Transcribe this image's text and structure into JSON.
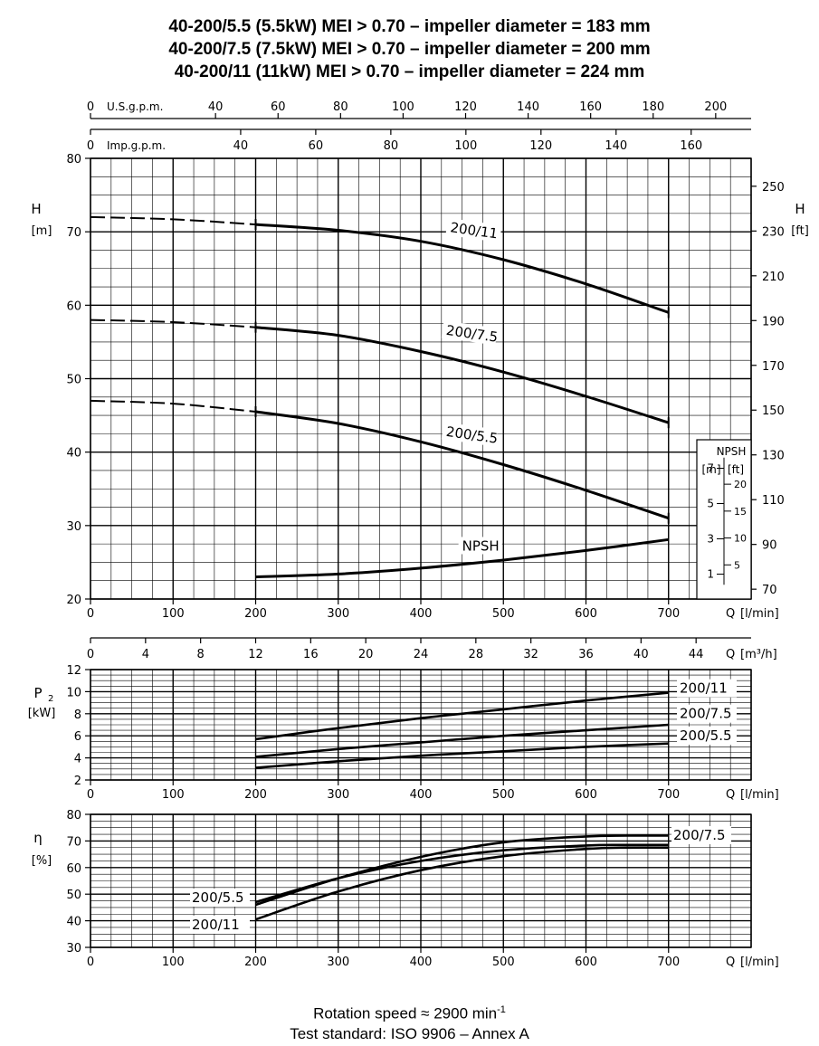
{
  "header": {
    "line1": "40-200/5.5 (5.5kW) MEI > 0.70 – impeller diameter = 183 mm",
    "line2": "40-200/7.5 (7.5kW) MEI > 0.70 – impeller diameter = 200 mm",
    "line3": "40-200/11  (11kW)  MEI > 0.70 – impeller diameter = 224 mm"
  },
  "footer": {
    "rotation_prefix": "Rotation speed ≈ 2900 min",
    "rotation_exp": "-1",
    "standard": "Test standard: ISO 9906 – Annex A"
  },
  "chart_data": [
    {
      "type": "line",
      "name_hint": "head",
      "ylabel": "H",
      "yunit": "[m]",
      "ylabel_right": "H",
      "yunit_right": "[ft]",
      "xlabel": "Q",
      "xunit": "[l/min]",
      "xlim": [
        0,
        800
      ],
      "ylim": [
        20,
        80
      ],
      "xticks": [
        0,
        100,
        200,
        300,
        400,
        500,
        600,
        700
      ],
      "yticks": [
        20,
        30,
        40,
        50,
        60,
        70,
        80
      ],
      "ft_ticks": [
        70,
        90,
        110,
        130,
        150,
        170,
        190,
        210,
        230,
        250
      ],
      "usgpm_label": "U.S.g.p.m.",
      "usgpm_ticks": [
        0,
        40,
        60,
        80,
        100,
        120,
        140,
        160,
        180,
        200
      ],
      "impgpm_label": "Imp.g.p.m.",
      "impgpm_ticks": [
        0,
        40,
        60,
        80,
        100,
        120,
        140,
        160
      ],
      "m3h_label": "Q",
      "m3h_unit": "[m³/h]",
      "m3h_ticks": [
        0,
        4,
        8,
        12,
        16,
        20,
        24,
        28,
        32,
        36,
        40,
        44
      ],
      "grid": true,
      "series": [
        {
          "name": "200/11",
          "x": [
            200,
            300,
            400,
            500,
            600,
            700
          ],
          "y": [
            71.0,
            70.2,
            68.7,
            66.2,
            62.9,
            59.0
          ],
          "dashed_x": [
            0,
            100,
            200
          ],
          "dashed_y": [
            72.0,
            71.7,
            71.0
          ],
          "label_at": [
            435,
            70.0
          ]
        },
        {
          "name": "200/7.5",
          "x": [
            200,
            300,
            400,
            500,
            600,
            700
          ],
          "y": [
            57.0,
            55.9,
            53.7,
            50.9,
            47.6,
            44.0
          ],
          "dashed_x": [
            0,
            100,
            200
          ],
          "dashed_y": [
            58.0,
            57.7,
            57.0
          ],
          "label_at": [
            430,
            56.0
          ]
        },
        {
          "name": "200/5.5",
          "x": [
            200,
            300,
            400,
            500,
            600,
            700
          ],
          "y": [
            45.5,
            43.9,
            41.4,
            38.3,
            34.8,
            31.0
          ],
          "dashed_x": [
            0,
            100,
            200
          ],
          "dashed_y": [
            47.0,
            46.6,
            45.5
          ],
          "label_at": [
            430,
            42.2
          ]
        },
        {
          "name": "NPSH",
          "x": [
            200,
            300,
            400,
            500,
            600,
            700
          ],
          "y": [
            23.0,
            23.4,
            24.2,
            25.3,
            26.6,
            28.1
          ],
          "label_at": [
            450,
            26.6
          ]
        }
      ],
      "npsh_box": {
        "title": "NPSH",
        "unit_m": "[m]",
        "unit_ft": "[ft]",
        "m_ticks": [
          1,
          3,
          5,
          7
        ],
        "ft_ticks": [
          5,
          10,
          15,
          20
        ]
      }
    },
    {
      "type": "line",
      "name_hint": "power",
      "ylabel": "P",
      "ylabel_sub": "2",
      "yunit": "[kW]",
      "xlabel": "Q",
      "xunit": "[l/min]",
      "xlim": [
        0,
        800
      ],
      "ylim": [
        2,
        12
      ],
      "xticks": [
        0,
        100,
        200,
        300,
        400,
        500,
        600,
        700
      ],
      "yticks": [
        2,
        4,
        6,
        8,
        10,
        12
      ],
      "grid": true,
      "series": [
        {
          "name": "200/11",
          "x": [
            200,
            300,
            400,
            500,
            600,
            700
          ],
          "y": [
            5.7,
            6.7,
            7.6,
            8.4,
            9.2,
            9.9
          ]
        },
        {
          "name": "200/7.5",
          "x": [
            200,
            300,
            400,
            500,
            600,
            700
          ],
          "y": [
            4.1,
            4.8,
            5.4,
            6.0,
            6.5,
            7.0
          ]
        },
        {
          "name": "200/5.5",
          "x": [
            200,
            300,
            400,
            500,
            600,
            700
          ],
          "y": [
            3.1,
            3.7,
            4.2,
            4.6,
            5.0,
            5.3
          ]
        }
      ]
    },
    {
      "type": "line",
      "name_hint": "efficiency",
      "ylabel": "η",
      "yunit": "[%]",
      "xlabel": "Q",
      "xunit": "[l/min]",
      "xlim": [
        0,
        800
      ],
      "ylim": [
        30,
        80
      ],
      "xticks": [
        0,
        100,
        200,
        300,
        400,
        500,
        600,
        700
      ],
      "yticks": [
        30,
        40,
        50,
        60,
        70,
        80
      ],
      "grid": true,
      "series": [
        {
          "name": "200/7.5",
          "x": [
            200,
            300,
            400,
            500,
            600,
            650,
            700
          ],
          "y": [
            46.0,
            56.0,
            64.0,
            69.5,
            71.7,
            72.0,
            72.0
          ]
        },
        {
          "name": "200/5.5",
          "x": [
            200,
            300,
            400,
            500,
            600,
            650,
            700
          ],
          "y": [
            47.0,
            56.0,
            62.5,
            66.5,
            68.3,
            68.5,
            68.5
          ]
        },
        {
          "name": "200/11",
          "x": [
            200,
            300,
            400,
            500,
            600,
            650,
            700
          ],
          "y": [
            40.5,
            51.0,
            59.0,
            64.3,
            67.0,
            67.5,
            67.5
          ]
        }
      ]
    }
  ]
}
